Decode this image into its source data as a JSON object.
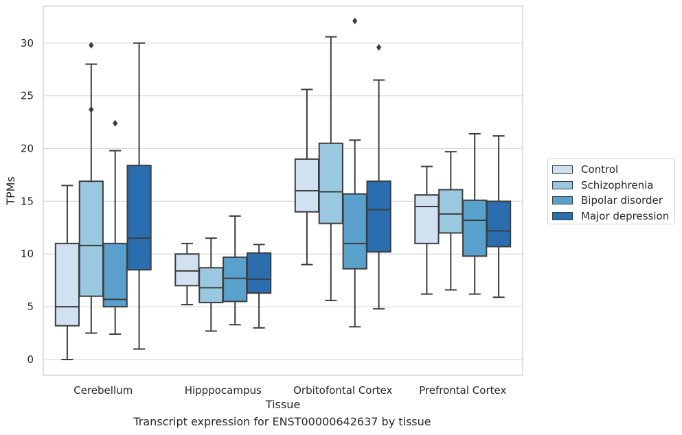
{
  "chart_data": {
    "type": "box",
    "caption": "Transcript expression for ENST00000642637 by tissue",
    "xlabel": "Tissue",
    "ylabel": "TPMs",
    "ylim": [
      -1.5,
      33.5
    ],
    "yticks": [
      0,
      5,
      10,
      15,
      20,
      25,
      30
    ],
    "grid": "horizontal",
    "legend_position": "right",
    "categories": [
      "Cerebellum",
      "Hipppocampus",
      "Orbitofontal Cortex",
      "Prefrontal Cortex"
    ],
    "series": [
      {
        "name": "Control",
        "color": "#d0e1f2",
        "boxes": [
          {
            "whisker_low": 0.0,
            "q1": 3.2,
            "median": 5.0,
            "q3": 11.0,
            "whisker_high": 16.5,
            "outliers": []
          },
          {
            "whisker_low": 5.2,
            "q1": 7.0,
            "median": 8.4,
            "q3": 10.0,
            "whisker_high": 11.0,
            "outliers": []
          },
          {
            "whisker_low": 9.0,
            "q1": 14.0,
            "median": 16.0,
            "q3": 19.0,
            "whisker_high": 25.6,
            "outliers": []
          },
          {
            "whisker_low": 6.2,
            "q1": 11.0,
            "median": 14.5,
            "q3": 15.6,
            "whisker_high": 18.3,
            "outliers": []
          }
        ]
      },
      {
        "name": "Schizophrenia",
        "color": "#9ac8e0",
        "boxes": [
          {
            "whisker_low": 2.5,
            "q1": 6.0,
            "median": 10.8,
            "q3": 16.9,
            "whisker_high": 28.0,
            "outliers": [
              29.8,
              23.7
            ]
          },
          {
            "whisker_low": 2.7,
            "q1": 5.4,
            "median": 6.8,
            "q3": 8.7,
            "whisker_high": 11.5,
            "outliers": []
          },
          {
            "whisker_low": 5.6,
            "q1": 12.9,
            "median": 15.9,
            "q3": 20.5,
            "whisker_high": 30.6,
            "outliers": []
          },
          {
            "whisker_low": 6.6,
            "q1": 12.0,
            "median": 13.8,
            "q3": 16.1,
            "whisker_high": 19.7,
            "outliers": []
          }
        ]
      },
      {
        "name": "Bipolar disorder",
        "color": "#5aa0cd",
        "boxes": [
          {
            "whisker_low": 2.4,
            "q1": 5.0,
            "median": 5.7,
            "q3": 11.0,
            "whisker_high": 19.8,
            "outliers": [
              22.4
            ]
          },
          {
            "whisker_low": 3.3,
            "q1": 5.5,
            "median": 7.7,
            "q3": 9.7,
            "whisker_high": 13.6,
            "outliers": []
          },
          {
            "whisker_low": 3.1,
            "q1": 8.6,
            "median": 11.0,
            "q3": 15.7,
            "whisker_high": 20.8,
            "outliers": [
              32.1
            ]
          },
          {
            "whisker_low": 6.2,
            "q1": 9.8,
            "median": 13.2,
            "q3": 15.1,
            "whisker_high": 21.4,
            "outliers": []
          }
        ]
      },
      {
        "name": "Major depression",
        "color": "#2a6eb0",
        "boxes": [
          {
            "whisker_low": 1.0,
            "q1": 8.5,
            "median": 11.5,
            "q3": 18.4,
            "whisker_high": 30.0,
            "outliers": []
          },
          {
            "whisker_low": 3.0,
            "q1": 6.3,
            "median": 7.6,
            "q3": 10.1,
            "whisker_high": 10.9,
            "outliers": []
          },
          {
            "whisker_low": 4.8,
            "q1": 10.2,
            "median": 14.2,
            "q3": 16.9,
            "whisker_high": 26.5,
            "outliers": [
              29.6
            ]
          },
          {
            "whisker_low": 5.9,
            "q1": 10.7,
            "median": 12.2,
            "q3": 15.0,
            "whisker_high": 21.2,
            "outliers": []
          }
        ]
      }
    ]
  }
}
